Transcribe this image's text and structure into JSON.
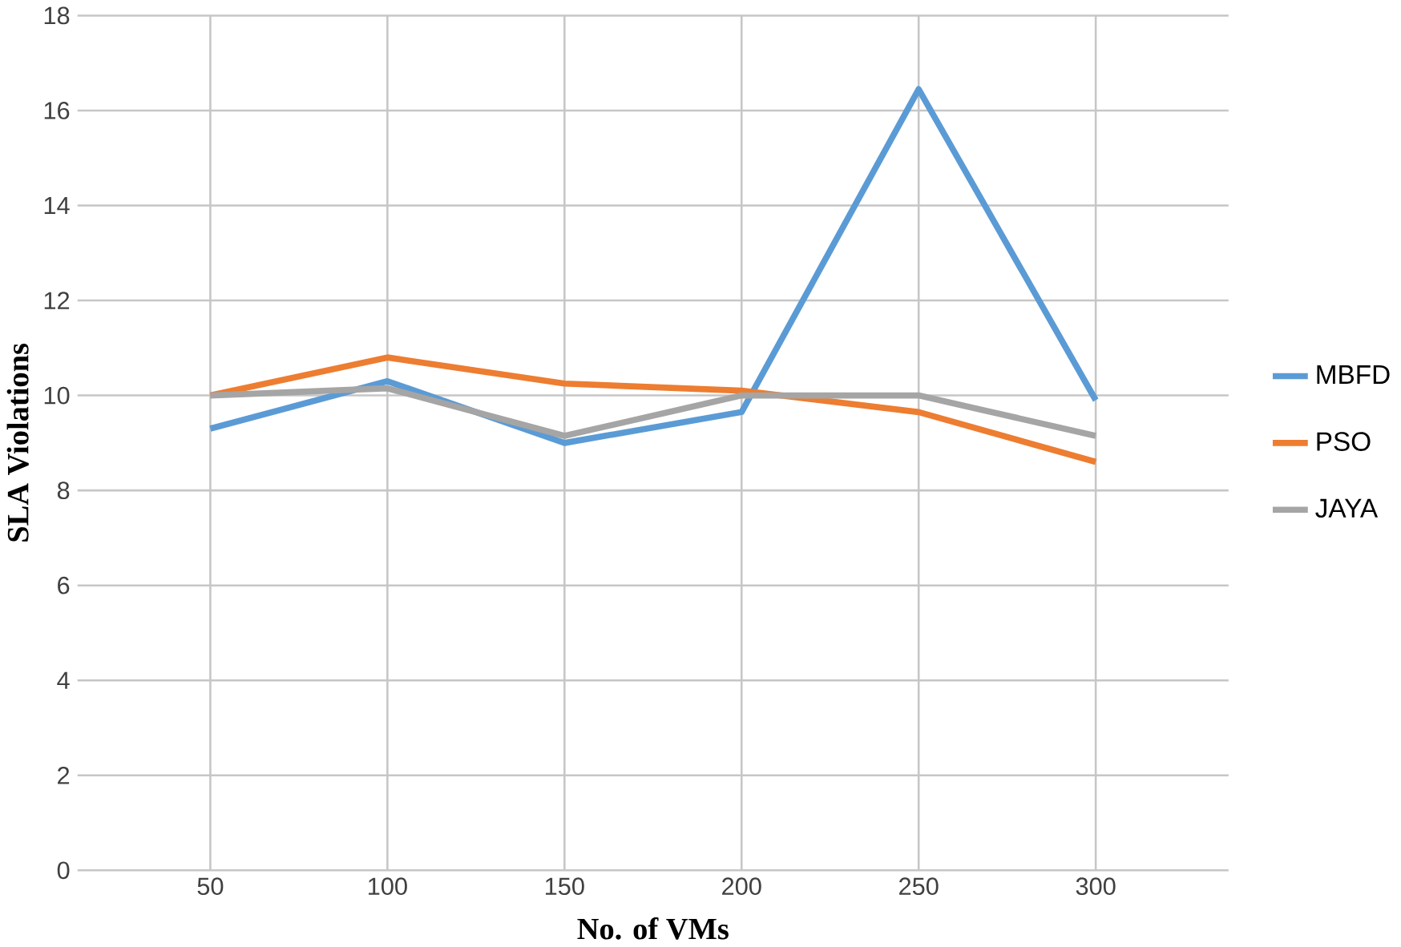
{
  "chart_data": {
    "type": "line",
    "xlabel": "No. of VMs",
    "ylabel": "SLA Violations",
    "categories": [
      "50",
      "100",
      "150",
      "200",
      "250",
      "300"
    ],
    "ylim": [
      0,
      18
    ],
    "yticks": [
      0,
      2,
      4,
      6,
      8,
      10,
      12,
      14,
      16,
      18
    ],
    "grid": true,
    "legend": "right",
    "marker": "none",
    "series": [
      {
        "name": "MBFD",
        "color": "#5b9bd5",
        "values": [
          9.3,
          10.3,
          9.0,
          9.65,
          16.45,
          9.9
        ]
      },
      {
        "name": "PSO",
        "color": "#ed7d31",
        "values": [
          10.0,
          10.8,
          10.25,
          10.1,
          9.65,
          8.6
        ]
      },
      {
        "name": "JAYA",
        "color": "#a5a5a5",
        "values": [
          10.0,
          10.15,
          9.15,
          10.0,
          10.0,
          9.15
        ]
      }
    ]
  }
}
